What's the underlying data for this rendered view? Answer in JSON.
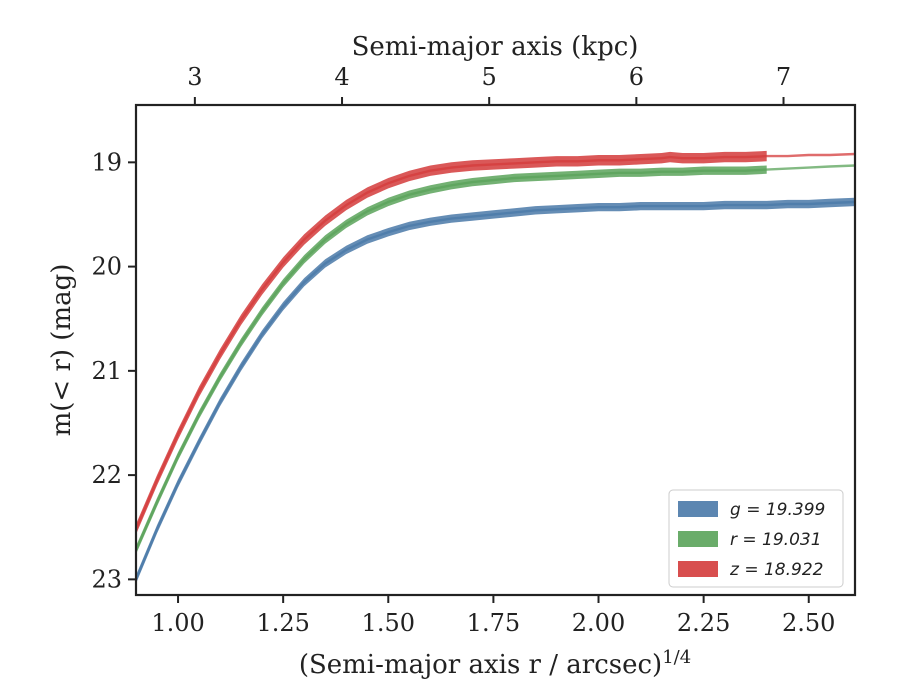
{
  "chart_data": {
    "type": "line",
    "xlabel_bottom": "(Semi-major axis r / arcsec)^1/4",
    "xlabel_top": "Semi-major axis (kpc)",
    "ylabel": "m(< r) (mag)",
    "xlim": [
      0.9,
      2.61
    ],
    "ylim": [
      23.15,
      18.45
    ],
    "y_inverted": true,
    "x_ticks": [
      "1.00",
      "1.25",
      "1.50",
      "1.75",
      "2.00",
      "2.25",
      "2.50"
    ],
    "x_tick_values": [
      1.0,
      1.25,
      1.5,
      1.75,
      2.0,
      2.25,
      2.5
    ],
    "y_ticks": [
      "19",
      "20",
      "21",
      "22",
      "23"
    ],
    "y_tick_values": [
      19,
      20,
      21,
      22,
      23
    ],
    "top_ticks": [
      "3",
      "4",
      "5",
      "6",
      "7"
    ],
    "top_tick_positions_bottom_units": [
      1.04,
      1.39,
      1.74,
      2.09,
      2.44
    ],
    "legend_position": "bottom-right",
    "grid": false,
    "series": [
      {
        "name": "g = 19.399",
        "legend_text": "g = 19.399",
        "color": "#4a79a8",
        "band": 0.04,
        "band_end_x": 2.61,
        "x": [
          0.9,
          0.95,
          1.0,
          1.05,
          1.1,
          1.15,
          1.2,
          1.25,
          1.3,
          1.35,
          1.4,
          1.45,
          1.5,
          1.55,
          1.6,
          1.65,
          1.7,
          1.75,
          1.8,
          1.85,
          1.9,
          1.95,
          2.0,
          2.05,
          2.1,
          2.15,
          2.2,
          2.25,
          2.3,
          2.35,
          2.4,
          2.45,
          2.5,
          2.55,
          2.61
        ],
        "y": [
          23.0,
          22.52,
          22.08,
          21.68,
          21.3,
          20.96,
          20.65,
          20.38,
          20.15,
          19.97,
          19.84,
          19.74,
          19.67,
          19.61,
          19.57,
          19.54,
          19.52,
          19.5,
          19.48,
          19.46,
          19.45,
          19.44,
          19.43,
          19.43,
          19.42,
          19.42,
          19.42,
          19.42,
          19.41,
          19.41,
          19.41,
          19.4,
          19.4,
          19.39,
          19.38
        ]
      },
      {
        "name": "r = 19.031",
        "legend_text": "r = 19.031",
        "color": "#5aa35a",
        "band": 0.04,
        "band_end_x": 2.4,
        "x": [
          0.9,
          0.95,
          1.0,
          1.05,
          1.1,
          1.15,
          1.2,
          1.25,
          1.3,
          1.35,
          1.4,
          1.45,
          1.5,
          1.55,
          1.6,
          1.65,
          1.7,
          1.75,
          1.8,
          1.85,
          1.9,
          1.95,
          2.0,
          2.05,
          2.1,
          2.15,
          2.2,
          2.25,
          2.3,
          2.35,
          2.4,
          2.45,
          2.5,
          2.55,
          2.61
        ],
        "y": [
          22.72,
          22.26,
          21.82,
          21.42,
          21.06,
          20.73,
          20.43,
          20.16,
          19.93,
          19.74,
          19.59,
          19.47,
          19.38,
          19.31,
          19.26,
          19.22,
          19.19,
          19.17,
          19.15,
          19.14,
          19.13,
          19.12,
          19.11,
          19.1,
          19.1,
          19.09,
          19.09,
          19.08,
          19.08,
          19.08,
          19.07,
          19.06,
          19.05,
          19.04,
          19.03
        ]
      },
      {
        "name": "z = 18.922",
        "legend_text": "z = 18.922",
        "color": "#d43b3b",
        "band": 0.05,
        "band_end_x": 2.4,
        "x": [
          0.9,
          0.95,
          1.0,
          1.05,
          1.1,
          1.15,
          1.2,
          1.25,
          1.3,
          1.35,
          1.4,
          1.45,
          1.5,
          1.55,
          1.6,
          1.65,
          1.7,
          1.75,
          1.8,
          1.85,
          1.9,
          1.95,
          2.0,
          2.05,
          2.1,
          2.15,
          2.17,
          2.2,
          2.25,
          2.3,
          2.35,
          2.4,
          2.45,
          2.5,
          2.55,
          2.61
        ],
        "y": [
          22.52,
          22.05,
          21.61,
          21.2,
          20.84,
          20.51,
          20.22,
          19.96,
          19.74,
          19.56,
          19.41,
          19.29,
          19.2,
          19.13,
          19.08,
          19.05,
          19.03,
          19.02,
          19.01,
          19.0,
          18.99,
          18.99,
          18.98,
          18.98,
          18.97,
          18.96,
          18.95,
          18.96,
          18.96,
          18.95,
          18.95,
          18.94,
          18.94,
          18.93,
          18.93,
          18.92
        ]
      }
    ]
  }
}
